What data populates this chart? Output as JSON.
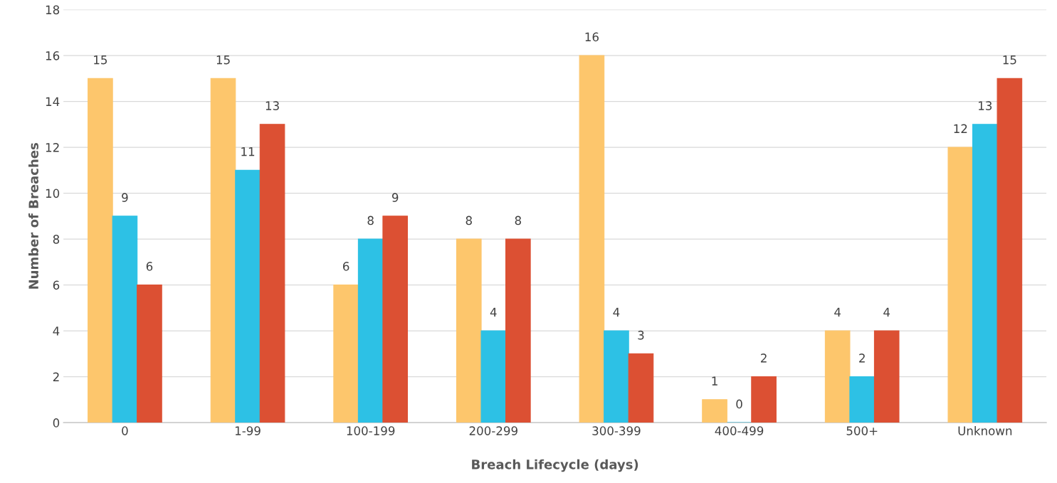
{
  "chart_data": {
    "type": "bar",
    "xlabel": "Breach Lifecycle (days)",
    "ylabel": "Number of Breaches",
    "categories": [
      "0",
      "1-99",
      "100-199",
      "200-299",
      "300-399",
      "400-499",
      "500+",
      "Unknown"
    ],
    "series": [
      {
        "color": "#fdc66c",
        "values": [
          15,
          15,
          6,
          8,
          16,
          1,
          4,
          12
        ]
      },
      {
        "color": "#2dc1e5",
        "values": [
          9,
          11,
          8,
          4,
          4,
          0,
          2,
          13
        ]
      },
      {
        "color": "#dc5033",
        "values": [
          6,
          13,
          9,
          8,
          3,
          2,
          4,
          15
        ]
      }
    ],
    "ylim": [
      0,
      18
    ],
    "yticks": [
      0,
      2,
      4,
      6,
      8,
      10,
      12,
      14,
      16,
      18
    ],
    "grid": "y",
    "data_labels": true
  }
}
